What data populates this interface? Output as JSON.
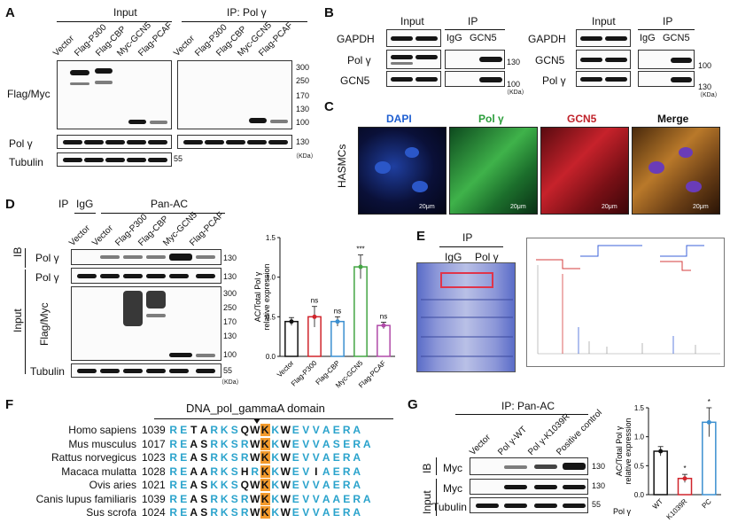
{
  "panels": {
    "A": {
      "label": "A",
      "input_title": "Input",
      "ip_title": "IP: Pol γ",
      "lanes": [
        "Vector",
        "Flag-P300",
        "Flag-CBP",
        "Myc-GCN5",
        "Flag-PCAF"
      ],
      "rows": [
        "Flag/Myc",
        "Pol γ",
        "Tubulin"
      ],
      "mw_top": [
        "300",
        "250",
        "170",
        "130",
        "100"
      ],
      "mw_pol": "130",
      "mw_tub": "55",
      "unit": "（KDa）"
    },
    "B": {
      "label": "B",
      "left": {
        "input_title": "Input",
        "ip_title": "IP",
        "ip_lanes": [
          "IgG",
          "GCN5"
        ],
        "rows": [
          "GAPDH",
          "Pol γ",
          "GCN5"
        ],
        "mw": [
          "130",
          "100"
        ],
        "unit": "（KDa）"
      },
      "right": {
        "input_title": "Input",
        "ip_title": "IP",
        "ip_lanes": [
          "IgG",
          "GCN5"
        ],
        "rows": [
          "GAPDH",
          "GCN5",
          "Pol γ"
        ],
        "mw": [
          "100",
          "130"
        ],
        "unit": "（KDa）"
      }
    },
    "C": {
      "label": "C",
      "cell_label": "HASMCs",
      "channels": [
        {
          "name": "DAPI",
          "color": "#1f5fd1"
        },
        {
          "name": "Pol γ",
          "color": "#2a9d3a"
        },
        {
          "name": "GCN5",
          "color": "#c0222a"
        },
        {
          "name": "Merge",
          "color": "#111111"
        }
      ],
      "scale": "20μm"
    },
    "D": {
      "label": "D",
      "ip_label": "IP",
      "ip_igg": "IgG",
      "ip_panac": "Pan-AC",
      "lanes": [
        "Vector",
        "Vector",
        "Flag-P300",
        "Flag-CBP",
        "Myc-GCN5",
        "Flag-PCAF"
      ],
      "ib_label": "IB",
      "input_label": "Input",
      "rows": [
        "Pol γ",
        "Pol γ",
        "Flag/Myc",
        "Tubulin"
      ],
      "mw_ib": "130",
      "mw_pol": "130",
      "mw_flag": [
        "300",
        "250",
        "170",
        "130",
        "100"
      ],
      "mw_tub": "55",
      "unit": "（KDa）"
    },
    "E": {
      "label": "E",
      "ip_title": "IP",
      "lanes": [
        "IgG",
        "Pol γ"
      ]
    },
    "F": {
      "label": "F",
      "domain_title": "DNA_pol_gammaA domain",
      "species": [
        {
          "name": "Homo sapiens",
          "pos": "1039",
          "seq": "RETARKSQWKKWEVVAERA"
        },
        {
          "name": "Mus musculus",
          "pos": "1017",
          "seq": "REASRKSRWKKWEVVASERA"
        },
        {
          "name": "Rattus norvegicus",
          "pos": "1023",
          "seq": "REASRKSRWKKWEVVAERA"
        },
        {
          "name": "Macaca mulatta",
          "pos": "1028",
          "seq": "REAARKSHRKKWEVIAERA"
        },
        {
          "name": "Ovis aries",
          "pos": "1021",
          "seq": "REASKKSQWKKWEVVAERA"
        },
        {
          "name": "Canis lupus familiaris",
          "pos": "1039",
          "seq": "REASRKSRWKKWEVVAAERA"
        },
        {
          "name": "Sus scrofa",
          "pos": "1024",
          "seq": "REASRKSRWKKWEVVAERA"
        }
      ]
    },
    "G": {
      "label": "G",
      "ip_title": "IP: Pan-AC",
      "lanes": [
        "Vector",
        "Pol γ-WT",
        "Pol γ-K1039R",
        "Positive control"
      ],
      "ib_label": "IB",
      "input_label": "Input",
      "rows": [
        "Myc",
        "Myc",
        "Tubulin"
      ],
      "mw": [
        "130",
        "130",
        "55"
      ]
    }
  },
  "chart_data": [
    {
      "type": "bar",
      "panel": "D",
      "ylabel": "AC/Total Pol γ relative expression",
      "ylim": [
        0,
        1.5
      ],
      "yticks": [
        "0.0",
        "0.5",
        "1.0",
        "1.5"
      ],
      "categories": [
        "Vector",
        "Flag-P300",
        "Flag-CBP",
        "Myc-GCN5",
        "Flag-PCAF"
      ],
      "values": [
        0.44,
        0.5,
        0.44,
        1.13,
        0.39
      ],
      "errors": [
        0.05,
        0.13,
        0.06,
        0.15,
        0.04
      ],
      "annotations": [
        "",
        "ns",
        "ns",
        "***",
        "ns"
      ],
      "colors": [
        "#111111",
        "#d0242b",
        "#3b8fd0",
        "#44a544",
        "#b04aa8"
      ]
    },
    {
      "type": "bar",
      "panel": "G",
      "ylabel": "AC/Total Pol γ relative expression",
      "ylim": [
        0,
        1.5
      ],
      "yticks": [
        "0.0",
        "0.5",
        "1.0",
        "1.5"
      ],
      "xgroup_label": "Pol γ",
      "categories": [
        "WT",
        "K1039R",
        "PC"
      ],
      "values": [
        0.75,
        0.28,
        1.25
      ],
      "errors": [
        0.08,
        0.07,
        0.25
      ],
      "annotations": [
        "",
        "*",
        "*"
      ],
      "colors": [
        "#111111",
        "#d0242b",
        "#3b8fd0"
      ]
    }
  ]
}
